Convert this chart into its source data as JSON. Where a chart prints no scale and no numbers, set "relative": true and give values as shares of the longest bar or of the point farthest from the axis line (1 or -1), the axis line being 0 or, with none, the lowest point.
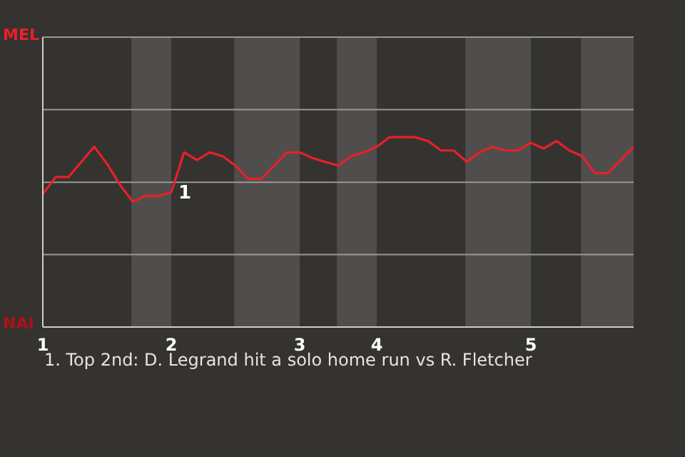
{
  "chart_data": {
    "type": "line",
    "relative": true,
    "categories": [
      "1",
      null,
      null,
      null,
      null,
      null,
      null,
      null,
      null,
      null,
      "2",
      null,
      null,
      null,
      null,
      null,
      null,
      null,
      null,
      null,
      "3",
      null,
      null,
      null,
      null,
      null,
      "4",
      null,
      null,
      null,
      null,
      null,
      null,
      null,
      null,
      null,
      null,
      null,
      "5",
      null,
      null,
      null,
      null,
      null,
      null,
      null,
      null
    ],
    "series": [
      {
        "color": "#e8202a",
        "values": [
          0.7,
          0.79,
          0.79,
          0.87,
          0.95,
          0.86,
          0.75,
          0.66,
          0.69,
          0.69,
          0.71,
          0.92,
          0.88,
          0.92,
          0.9,
          0.85,
          0.78,
          0.78,
          0.85,
          0.92,
          0.92,
          0.89,
          0.87,
          0.85,
          0.9,
          0.92,
          0.95,
          1,
          1,
          1,
          0.98,
          0.93,
          0.93,
          0.87,
          0.92,
          0.95,
          0.93,
          0.93,
          0.97,
          0.94,
          0.98,
          0.93,
          0.9,
          0.81,
          0.81,
          0.88,
          0.95
        ]
      }
    ],
    "marker": "none",
    "line_style": "solid",
    "ref_lines": [
      {
        "axis": "y",
        "value": 0.382,
        "label": null,
        "color": "#9a9894"
      },
      {
        "axis": "y",
        "value": 0.763,
        "label": null,
        "color": "#9a9894"
      },
      {
        "axis": "y",
        "value": 1.145,
        "label": null,
        "color": "#9a9894"
      }
    ],
    "annotations": [
      "MEL",
      "NAI",
      {
        "text": "1",
        "x": "2",
        "y": 0.71
      },
      "1. Top 2nd: D. Legrand hit a solo home run vs R. Fletcher"
    ]
  }
}
